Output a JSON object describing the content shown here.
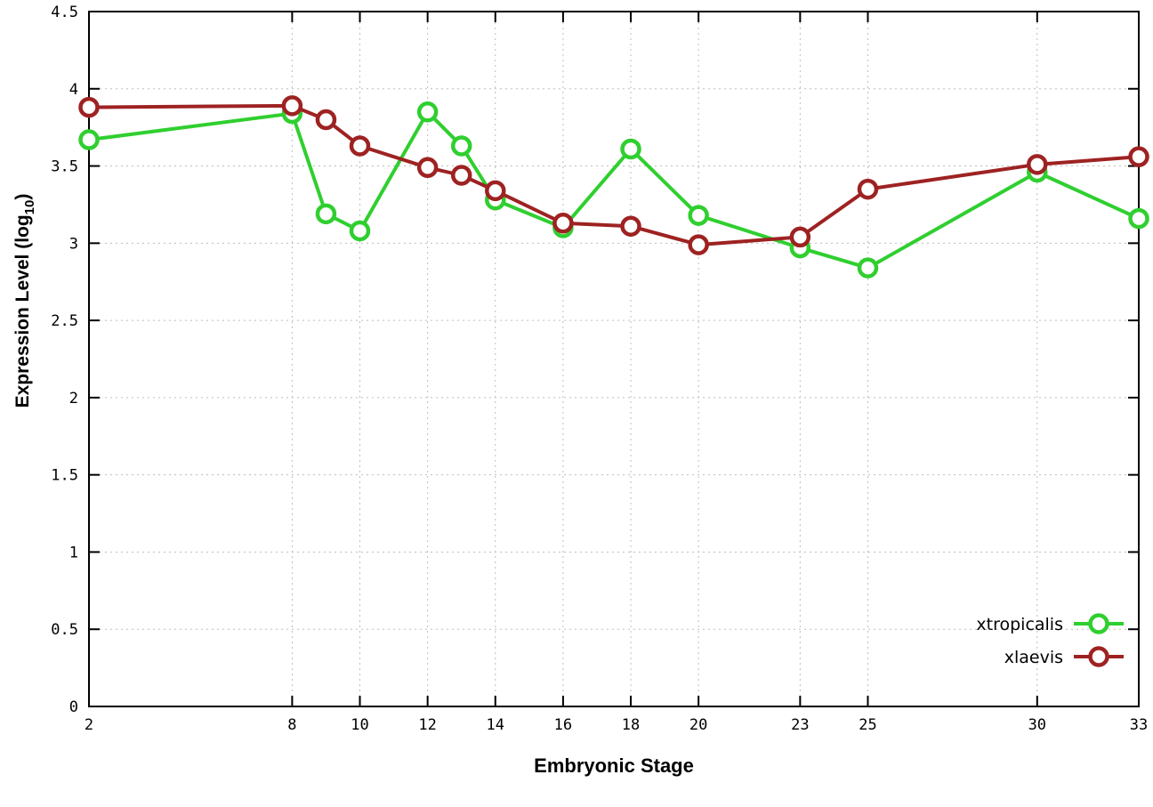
{
  "chart_data": {
    "type": "line",
    "title": "",
    "xlabel": "Embryonic Stage",
    "ylabel": "Expression Level (log10)",
    "ylabel_main": "Expression Level (log",
    "ylabel_sub": "10",
    "ylabel_end": ")",
    "xlim": [
      2,
      33
    ],
    "ylim": [
      0,
      4.5
    ],
    "xticks": [
      2,
      8,
      10,
      12,
      14,
      16,
      18,
      20,
      23,
      25,
      30,
      33
    ],
    "yticks": [
      0,
      0.5,
      1,
      1.5,
      2,
      2.5,
      3,
      3.5,
      4,
      4.5
    ],
    "ytick_labels": [
      "0",
      "0.5",
      "1",
      "1.5",
      "2",
      "2.5",
      "3",
      "3.5",
      "4",
      "4.5"
    ],
    "grid": true,
    "legend_position": "bottom-right",
    "x": [
      2,
      8,
      9,
      10,
      12,
      13,
      14,
      16,
      18,
      20,
      23,
      25,
      30,
      33
    ],
    "series": [
      {
        "name": "xtropicalis",
        "color": "#2fcf2f",
        "values": [
          3.67,
          3.84,
          3.19,
          3.08,
          3.85,
          3.63,
          3.28,
          3.1,
          3.61,
          3.18,
          2.97,
          2.84,
          3.46,
          3.16
        ]
      },
      {
        "name": "xlaevis",
        "color": "#9e2222",
        "values": [
          3.88,
          3.89,
          3.8,
          3.63,
          3.49,
          3.44,
          3.34,
          3.13,
          3.11,
          2.99,
          3.04,
          3.35,
          3.51,
          3.56
        ]
      }
    ],
    "colors": {
      "border": "#000000",
      "grid": "#bdbdbd",
      "background": "#ffffff"
    }
  }
}
